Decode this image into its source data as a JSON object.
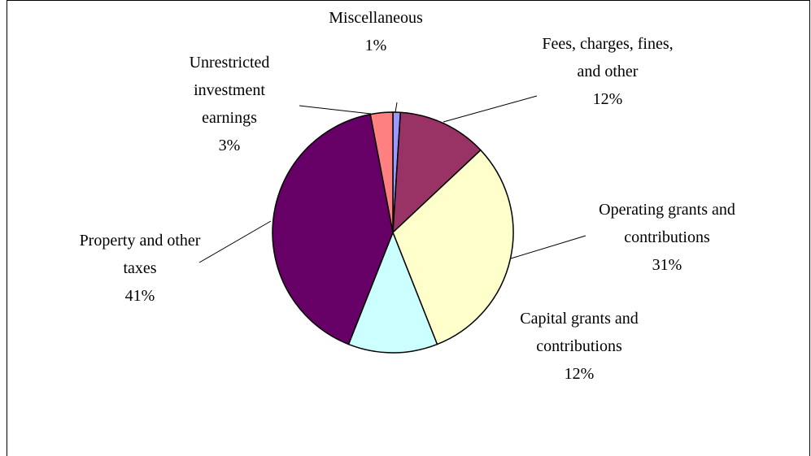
{
  "chart_data": {
    "type": "pie",
    "categories": [
      "Miscellaneous",
      "Fees, charges, fines, and other",
      "Operating grants and contributions",
      "Capital grants and contributions",
      "Property and other taxes",
      "Unrestricted investment earnings"
    ],
    "values": [
      1,
      12,
      31,
      12,
      41,
      3
    ],
    "value_labels": [
      "1%",
      "12%",
      "31%",
      "12%",
      "41%",
      "3%"
    ],
    "colors": [
      "#9999ff",
      "#993366",
      "#ffffcc",
      "#ccffff",
      "#660066",
      "#ff8080"
    ]
  }
}
